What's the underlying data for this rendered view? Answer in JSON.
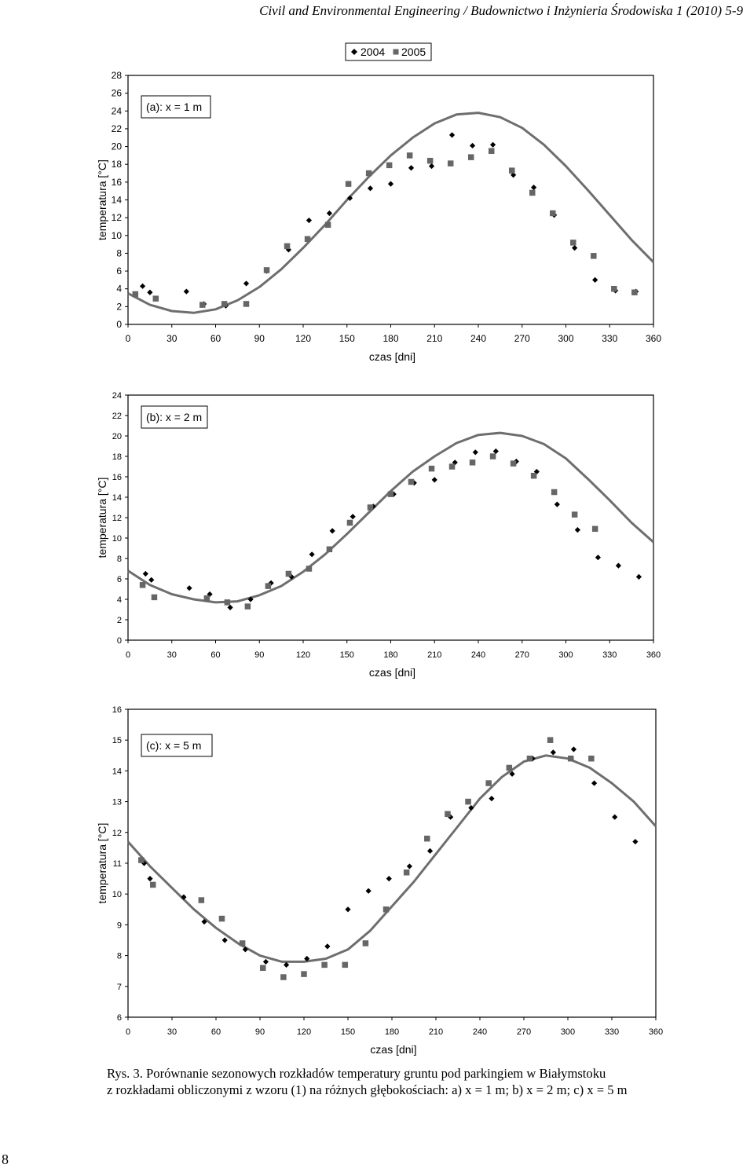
{
  "header": {
    "journal": "Civil and Environmental Engineering / Budownictwo i Inżynieria Środowiska",
    "issue": "1 (2010) 5-9"
  },
  "legend": {
    "series_2004": "2004",
    "series_2005": "2005"
  },
  "chart_data": [
    {
      "type": "scatter",
      "title": "(a): x = 1 m",
      "xlabel": "czas [dni]",
      "ylabel": "temperatura [°C]",
      "xlim": [
        0,
        360
      ],
      "ylim": [
        0,
        28
      ],
      "x_ticks": [
        0,
        30,
        60,
        90,
        120,
        150,
        180,
        210,
        240,
        270,
        300,
        330,
        360
      ],
      "y_ticks": [
        0,
        2,
        4,
        6,
        8,
        10,
        12,
        14,
        16,
        18,
        20,
        22,
        24,
        26,
        28
      ],
      "series": [
        {
          "name": "2004",
          "marker": "diamond",
          "x": [
            10,
            15,
            40,
            52,
            67,
            81,
            95,
            110,
            124,
            138,
            152,
            166,
            180,
            194,
            208,
            222,
            236,
            250,
            264,
            278,
            292,
            306,
            320,
            334,
            348
          ],
          "y": [
            4.3,
            3.6,
            3.7,
            2.3,
            2.1,
            4.6,
            6.0,
            8.4,
            11.7,
            12.5,
            14.2,
            15.3,
            15.8,
            17.6,
            17.8,
            21.3,
            20.1,
            20.2,
            16.8,
            15.4,
            12.3,
            8.6,
            5.0,
            3.8,
            3.7
          ]
        },
        {
          "name": "2005",
          "marker": "square",
          "x": [
            5,
            19,
            51,
            66,
            81,
            95,
            109,
            123,
            137,
            151,
            165,
            179,
            193,
            207,
            221,
            235,
            249,
            263,
            277,
            291,
            305,
            319,
            333,
            347
          ],
          "y": [
            3.4,
            2.9,
            2.2,
            2.3,
            2.3,
            6.1,
            8.8,
            9.6,
            11.2,
            15.8,
            17.0,
            17.9,
            19.0,
            18.4,
            18.1,
            18.8,
            19.5,
            17.3,
            14.8,
            12.5,
            9.2,
            7.7,
            4.0,
            3.6
          ]
        },
        {
          "name": "model",
          "marker": "line",
          "x": [
            0,
            15,
            30,
            45,
            60,
            75,
            90,
            105,
            120,
            135,
            150,
            165,
            180,
            195,
            210,
            225,
            240,
            255,
            270,
            285,
            300,
            315,
            330,
            345,
            360
          ],
          "y": [
            3.5,
            2.2,
            1.5,
            1.3,
            1.7,
            2.7,
            4.2,
            6.2,
            8.6,
            11.2,
            14.0,
            16.6,
            19.0,
            21.0,
            22.6,
            23.6,
            23.8,
            23.3,
            22.1,
            20.2,
            17.8,
            15.1,
            12.3,
            9.5,
            7.0
          ]
        }
      ]
    },
    {
      "type": "scatter",
      "title": "(b): x = 2 m",
      "xlabel": "czas [dni]",
      "ylabel": "temperatura [°C]",
      "xlim": [
        0,
        360
      ],
      "ylim": [
        0,
        24
      ],
      "x_ticks": [
        0,
        30,
        60,
        90,
        120,
        150,
        180,
        210,
        240,
        270,
        300,
        330,
        360
      ],
      "y_ticks": [
        0,
        2,
        4,
        6,
        8,
        10,
        12,
        14,
        16,
        18,
        20,
        22,
        24
      ],
      "series": [
        {
          "name": "2004",
          "marker": "diamond",
          "x": [
            12,
            16,
            42,
            56,
            70,
            84,
            98,
            112,
            126,
            140,
            154,
            168,
            182,
            196,
            210,
            224,
            238,
            252,
            266,
            280,
            294,
            308,
            322,
            336,
            350
          ],
          "y": [
            6.5,
            5.9,
            5.1,
            4.5,
            3.2,
            4.0,
            5.6,
            6.2,
            8.4,
            10.7,
            12.1,
            13.1,
            14.3,
            15.4,
            15.7,
            17.4,
            18.4,
            18.5,
            17.5,
            16.5,
            13.3,
            10.8,
            8.1,
            7.3,
            6.2
          ]
        },
        {
          "name": "2005",
          "marker": "square",
          "x": [
            10,
            18,
            54,
            68,
            82,
            96,
            110,
            124,
            138,
            152,
            166,
            180,
            194,
            208,
            222,
            236,
            250,
            264,
            278,
            292,
            306,
            320
          ],
          "y": [
            5.4,
            4.2,
            4.1,
            3.7,
            3.3,
            5.3,
            6.5,
            7.0,
            8.9,
            11.5,
            13.0,
            14.3,
            15.5,
            16.8,
            17.0,
            17.4,
            18.0,
            17.3,
            16.1,
            14.5,
            12.3,
            10.9
          ]
        },
        {
          "name": "model",
          "marker": "line",
          "x": [
            0,
            15,
            30,
            45,
            60,
            75,
            90,
            105,
            120,
            135,
            150,
            165,
            180,
            195,
            210,
            225,
            240,
            255,
            270,
            285,
            300,
            315,
            330,
            345,
            360
          ],
          "y": [
            6.8,
            5.4,
            4.5,
            4.0,
            3.7,
            3.8,
            4.4,
            5.3,
            6.7,
            8.4,
            10.4,
            12.5,
            14.6,
            16.5,
            18.0,
            19.3,
            20.1,
            20.3,
            20.0,
            19.2,
            17.8,
            15.8,
            13.7,
            11.5,
            9.6
          ]
        }
      ]
    },
    {
      "type": "scatter",
      "title": "(c): x = 5 m",
      "xlabel": "czas [dni]",
      "ylabel": "temperatura [°C]",
      "xlim": [
        0,
        360
      ],
      "ylim": [
        6,
        16
      ],
      "x_ticks": [
        0,
        30,
        60,
        90,
        120,
        150,
        180,
        210,
        240,
        270,
        300,
        330,
        360
      ],
      "y_ticks": [
        6,
        7,
        8,
        9,
        10,
        11,
        12,
        13,
        14,
        15,
        16
      ],
      "series": [
        {
          "name": "2004",
          "marker": "diamond",
          "x": [
            11,
            15,
            38,
            52,
            66,
            80,
            94,
            108,
            122,
            136,
            150,
            164,
            178,
            192,
            206,
            220,
            234,
            248,
            262,
            276,
            290,
            304,
            318,
            332,
            346
          ],
          "y": [
            11.0,
            10.5,
            9.9,
            9.1,
            8.5,
            8.2,
            7.8,
            7.7,
            7.9,
            8.3,
            9.5,
            10.1,
            10.5,
            10.9,
            11.4,
            12.5,
            12.8,
            13.1,
            13.9,
            14.4,
            14.6,
            14.7,
            13.6,
            12.5,
            11.7
          ]
        },
        {
          "name": "2005",
          "marker": "square",
          "x": [
            9,
            17,
            50,
            64,
            78,
            92,
            106,
            120,
            134,
            148,
            162,
            176,
            190,
            204,
            218,
            232,
            246,
            260,
            274,
            288,
            302,
            316
          ],
          "y": [
            11.1,
            10.3,
            9.8,
            9.2,
            8.4,
            7.6,
            7.3,
            7.4,
            7.7,
            7.7,
            8.4,
            9.5,
            10.7,
            11.8,
            12.6,
            13.0,
            13.6,
            14.1,
            14.4,
            15.0,
            14.4,
            14.4
          ]
        },
        {
          "name": "model",
          "marker": "line",
          "x": [
            0,
            15,
            30,
            45,
            60,
            75,
            90,
            105,
            120,
            135,
            150,
            165,
            180,
            195,
            210,
            225,
            240,
            255,
            270,
            285,
            300,
            315,
            330,
            345,
            360
          ],
          "y": [
            11.7,
            10.9,
            10.2,
            9.5,
            8.9,
            8.4,
            8.0,
            7.8,
            7.8,
            7.9,
            8.2,
            8.8,
            9.6,
            10.4,
            11.3,
            12.2,
            13.1,
            13.8,
            14.3,
            14.5,
            14.4,
            14.1,
            13.6,
            13.0,
            12.2
          ]
        }
      ]
    }
  ],
  "caption": {
    "line1": "Rys. 3. Porównanie sezonowych rozkładów temperatury gruntu pod parkingiem w Białymstoku",
    "line2": "z rozkładami obliczonymi z wzoru (1) na różnych głębokościach: a) x = 1 m; b) x = 2 m; c) x = 5 m"
  },
  "page_number": "8"
}
